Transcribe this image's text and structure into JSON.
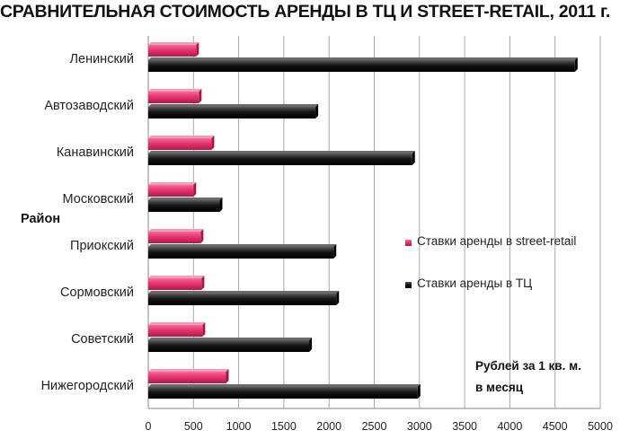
{
  "chart_data": {
    "type": "bar",
    "orientation": "horizontal",
    "title": "СРАВНИТЕЛЬНАЯ СТОИМОСТЬ АРЕНДЫ В ТЦ И STREET-RETAIL, 2011 г.",
    "ylabel": "Район",
    "xlabel": "",
    "note_lines": [
      "Рублей за 1 кв. м.",
      "в месяц"
    ],
    "categories": [
      "Ленинский",
      "Автозаводский",
      "Канавинский",
      "Московский",
      "Приокский",
      "Сормовский",
      "Советский",
      "Нижегородский"
    ],
    "series": [
      {
        "name": "Ставки аренды в street-retail",
        "color": "#e8336e",
        "values": [
          530,
          560,
          700,
          500,
          580,
          590,
          600,
          860
        ]
      },
      {
        "name": "Ставки аренды в ТЦ",
        "color": "#111111",
        "values": [
          4720,
          1850,
          2920,
          790,
          2050,
          2080,
          1780,
          2980
        ]
      }
    ],
    "xlim": [
      0,
      5000
    ],
    "xticks": [
      0,
      500,
      1000,
      1500,
      2000,
      2500,
      3000,
      3500,
      4000,
      4500,
      5000
    ],
    "grid": true,
    "legend_position": "right"
  }
}
